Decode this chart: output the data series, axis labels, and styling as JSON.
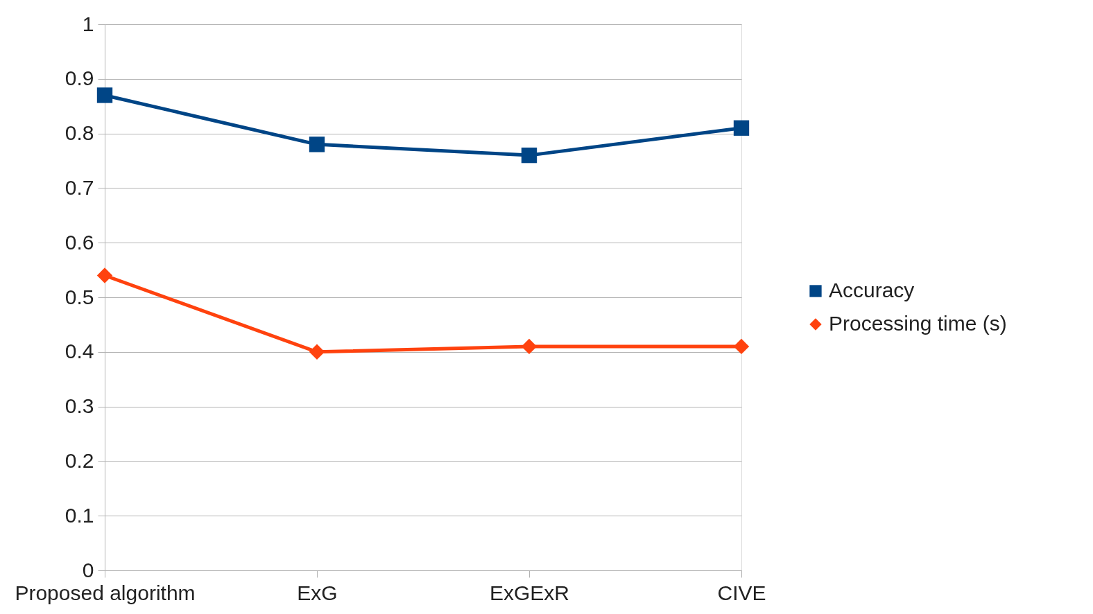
{
  "chart_data": {
    "type": "line",
    "categories": [
      "Proposed algorithm",
      "ExG",
      "ExGExR",
      "CIVE"
    ],
    "series": [
      {
        "name": "Accuracy",
        "color": "#004586",
        "marker": "square",
        "values": [
          0.87,
          0.78,
          0.76,
          0.81
        ]
      },
      {
        "name": "Processing time (s)",
        "color": "#ff420e",
        "marker": "diamond",
        "values": [
          0.54,
          0.4,
          0.41,
          0.41
        ]
      }
    ],
    "ylim": [
      0,
      1
    ],
    "yticks": [
      0,
      0.1,
      0.2,
      0.3,
      0.4,
      0.5,
      0.6,
      0.7,
      0.8,
      0.9,
      1
    ],
    "grid": "y",
    "legend": "right",
    "line_style": "solid"
  }
}
